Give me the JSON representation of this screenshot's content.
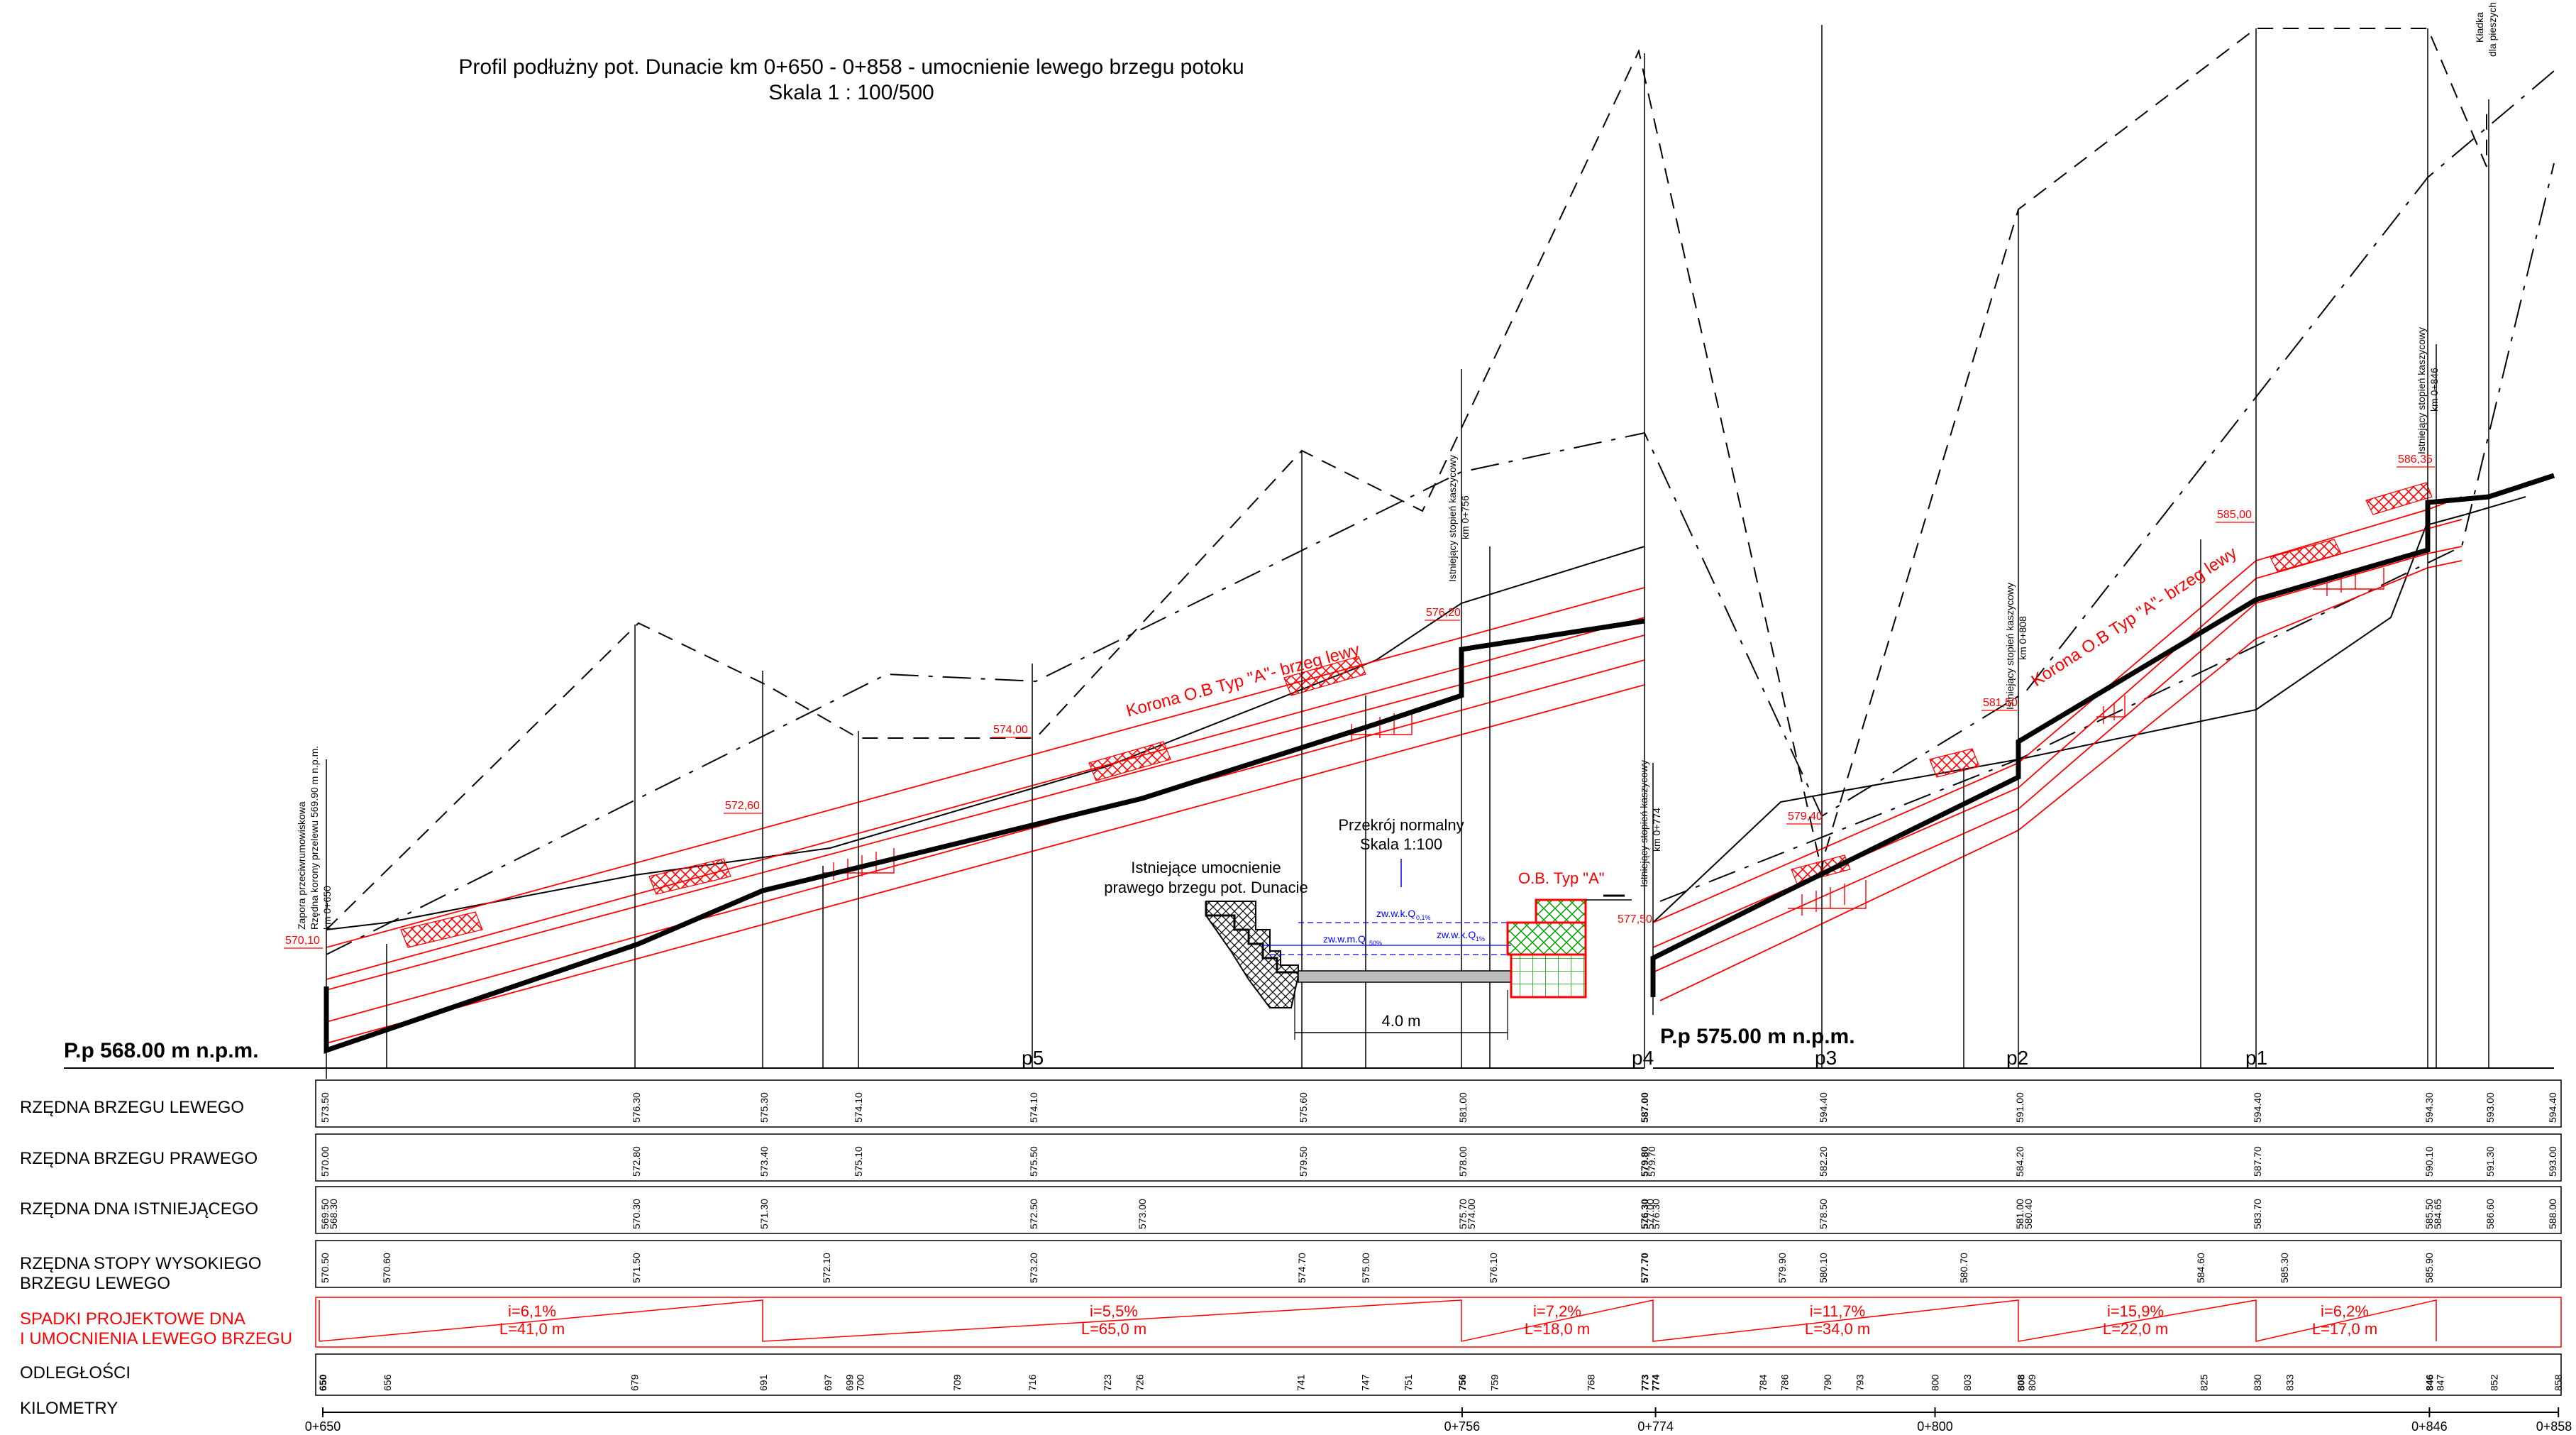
{
  "title": {
    "line1": "Profil podłużny pot. Dunacie km 0+650 - 0+858 - umocnienie lewego brzegu potoku",
    "line2": "Skala 1 : 100/500"
  },
  "datum_left": "P.p 568.00 m n.p.m.",
  "datum_right": "P.p 575.00 m n.p.m.",
  "section": {
    "existing_label_1": "Istniejące umocnienie",
    "existing_label_2": "prawego brzegu pot. Dunacie",
    "title_1": "Przekrój normalny",
    "title_2": "Skala 1:100",
    "type_label": "O.B. Typ \"A\"",
    "water_1": "zw.w.k.Q",
    "water_1_sub": "0,1%",
    "water_2": "zw.w.m.Q",
    "water_2_sub": "50%",
    "water_3": "zw.w.k.Q",
    "water_3_sub": "1%",
    "width": "4.0 m"
  },
  "vertical_labels": [
    "Zapora przeciwrumowiskowa",
    "Rzędna korony przelewu 569.90 m n.p.m.",
    "km 0+650",
    "Istniejący stopień kaszycowy",
    "km 0+756",
    "Istniejący stopień kaszycowy",
    "km 0+774",
    "Istniejący stopień kaszycowy",
    "km 0+808",
    "Istniejący stopień kaszycowy",
    "km 0+846",
    "Kładka",
    "dla pieszych"
  ],
  "korona_label": "Korona O.B Typ \"A\"- brzeg lewy",
  "crest_marks": [
    "570,10",
    "572,60",
    "574,00",
    "576,20",
    "577,50",
    "579,40",
    "581,50",
    "585,00",
    "586,35"
  ],
  "profile_points": [
    "p5",
    "p4",
    "p3",
    "p2",
    "p1"
  ],
  "rows": [
    {
      "label": "RZĘDNA BRZEGU LEWEGO",
      "values": [
        "573.50",
        "576.30",
        "575.30",
        "574.10",
        "574.10",
        "575.60",
        "581.00",
        "587.00",
        "594.40",
        "591.00",
        "594.40",
        "594.30",
        "593.00",
        "594.40"
      ]
    },
    {
      "label": "RZĘDNA BRZEGU PRAWEGO",
      "values": [
        "570.00",
        "572.80",
        "573.40",
        "575.10",
        "575.50",
        "579.50",
        "578.00",
        "579.80",
        "579.70",
        "582.20",
        "584.20",
        "587.70",
        "590.10",
        "591.30",
        "593.00"
      ]
    },
    {
      "label": "RZĘDNA DNA ISTNIEJĄCEGO",
      "values": [
        "569.50",
        "568.30",
        "570.30",
        "571.30",
        "572.50",
        "573.00",
        "575.70",
        "574.00",
        "576.30",
        "577.00",
        "576.30",
        "578.50",
        "581.00",
        "580.40",
        "583.70",
        "585.50",
        "584.65",
        "586.60",
        "588.00"
      ]
    },
    {
      "label": "RZĘDNA STOPY WYSOKIEGO",
      "label2": "BRZEGU LEWEGO",
      "values": [
        "570.50",
        "570.60",
        "571.50",
        "572.10",
        "573.20",
        "574.70",
        "575.00",
        "576.10",
        "577.70",
        "579.90",
        "580.10",
        "580.70",
        "584.60",
        "585.30",
        "585.90"
      ]
    },
    {
      "label": "SPADKI PROJEKTOWE DNA",
      "label2": "I UMOCNIENIA LEWEGO BRZEGU",
      "slopes": [
        {
          "i": "i=6,1%",
          "L": "L=41,0 m"
        },
        {
          "i": "i=5,5%",
          "L": "L=65,0 m"
        },
        {
          "i": "i=7,2%",
          "L": "L=18,0 m"
        },
        {
          "i": "i=11,7%",
          "L": "L=34,0 m"
        },
        {
          "i": "i=15,9%",
          "L": "L=22,0 m"
        },
        {
          "i": "i=6,2%",
          "L": "L=17,0 m"
        }
      ]
    },
    {
      "label": "ODLEGŁOŚCI",
      "values": [
        "650",
        "656",
        "679",
        "691",
        "697",
        "699",
        "700",
        "709",
        "716",
        "723",
        "726",
        "741",
        "747",
        "751",
        "756",
        "759",
        "768",
        "773",
        "774",
        "784",
        "786",
        "790",
        "793",
        "800",
        "803",
        "808",
        "809",
        "825",
        "830",
        "833",
        "846",
        "847",
        "852",
        "858"
      ]
    },
    {
      "label": "KILOMETRY",
      "values": [
        "0+650",
        "0+756",
        "0+774",
        "0+800",
        "0+846",
        "0+858"
      ]
    }
  ],
  "colors": {
    "ink": "#000000",
    "design": "#ff0000",
    "water": "#0000ff",
    "grass": "#00a000"
  }
}
